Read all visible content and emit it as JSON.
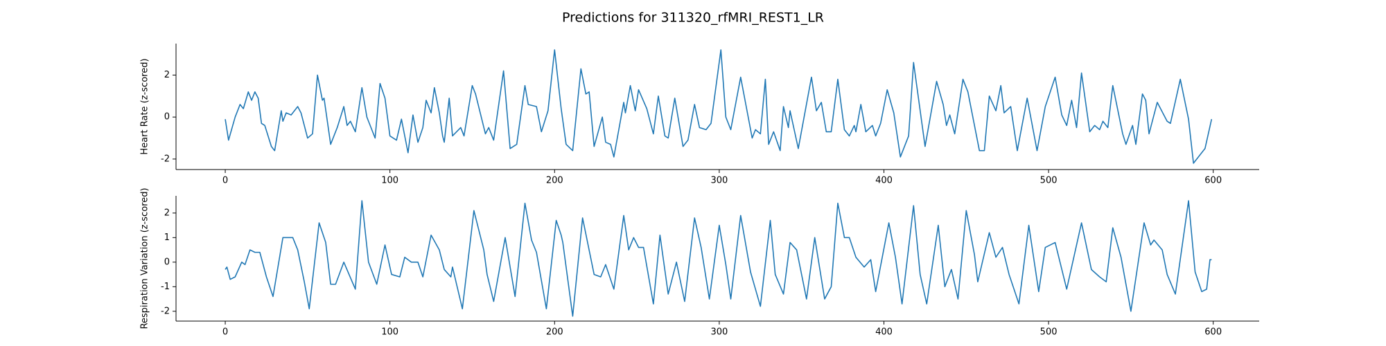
{
  "title": "Predictions for 311320_rfMRI_REST1_LR",
  "chart_data": [
    {
      "type": "line",
      "ylabel": "Heart Rate (z-scored)",
      "xlim": [
        -29.9,
        627.9
      ],
      "xticks": [
        0,
        100,
        200,
        300,
        400,
        500,
        600
      ],
      "ylim": [
        -2.5,
        3.5
      ],
      "yticks": [
        -2,
        0,
        2
      ],
      "x": [
        0,
        2,
        6,
        9,
        11,
        14,
        16,
        18,
        20,
        22,
        24,
        28,
        30,
        34,
        35,
        37,
        40,
        44,
        46,
        50,
        53,
        56,
        59,
        60,
        64,
        68,
        72,
        74,
        76,
        79,
        83,
        86,
        87,
        91,
        94,
        97,
        100,
        104,
        107,
        111,
        114,
        117,
        120,
        122,
        125,
        127,
        130,
        132,
        133,
        136,
        138,
        143,
        145,
        150,
        152,
        158,
        160,
        163,
        169,
        173,
        177,
        182,
        184,
        189,
        192,
        196,
        200,
        204,
        207,
        211,
        216,
        219,
        221,
        224,
        229,
        231,
        234,
        236,
        242,
        243,
        246,
        249,
        251,
        256,
        260,
        263,
        267,
        269,
        273,
        278,
        281,
        285,
        288,
        292,
        295,
        301,
        304,
        307,
        313,
        320,
        322,
        325,
        328,
        330,
        333,
        337,
        339,
        342,
        343,
        348,
        356,
        359,
        362,
        365,
        368,
        372,
        376,
        379,
        382,
        383,
        386,
        389,
        393,
        395,
        398,
        402,
        406,
        410,
        415,
        418,
        425,
        432,
        436,
        438,
        440,
        443,
        448,
        451,
        458,
        461,
        464,
        468,
        471,
        473,
        477,
        481,
        487,
        493,
        498,
        504,
        508,
        511,
        514,
        517,
        520,
        525,
        528,
        531,
        533,
        536,
        539,
        545,
        547,
        551,
        553,
        557,
        559,
        561,
        566,
        572,
        574,
        580,
        585,
        588,
        591,
        595,
        599
      ],
      "series": [
        {
          "color": "#1f77b4",
          "values": [
            -0.1,
            -1.1,
            0,
            0.6,
            0.4,
            1.2,
            0.8,
            1.2,
            0.9,
            -0.3,
            -0.4,
            -1.4,
            -1.6,
            0.3,
            -0.2,
            0.2,
            0.1,
            0.5,
            0.2,
            -1.0,
            -0.8,
            2.0,
            0.8,
            0.9,
            -1.3,
            -0.5,
            0.5,
            -0.4,
            -0.2,
            -0.7,
            1.4,
            0,
            -0.2,
            -1.0,
            1.6,
            0.9,
            -0.9,
            -1.1,
            -0.1,
            -1.7,
            0.1,
            -1.2,
            -0.5,
            0.8,
            0.2,
            1.4,
            0.2,
            -0.9,
            -1.2,
            0.9,
            -0.9,
            -0.5,
            -0.9,
            1.5,
            1.1,
            -0.8,
            -0.5,
            -1.1,
            2.2,
            -1.5,
            -1.3,
            1.5,
            0.6,
            0.5,
            -0.7,
            0.3,
            3.2,
            0.4,
            -1.3,
            -1.6,
            2.3,
            1.1,
            1.2,
            -1.4,
            0,
            -1.2,
            -1.3,
            -1.9,
            0.7,
            0.2,
            1.5,
            0.3,
            1.3,
            0.4,
            -0.8,
            1.0,
            -0.9,
            -1.0,
            0.9,
            -1.4,
            -1.1,
            0.6,
            -0.5,
            -0.6,
            -0.3,
            3.2,
            0,
            -0.6,
            1.9,
            -1.0,
            -0.6,
            -0.8,
            1.8,
            -1.3,
            -0.7,
            -1.6,
            0.5,
            -0.5,
            0.3,
            -1.5,
            1.9,
            0.3,
            0.7,
            -0.7,
            -0.7,
            1.8,
            -0.6,
            -0.9,
            -0.4,
            -0.7,
            0.6,
            -0.7,
            -0.4,
            -0.9,
            -0.3,
            1.3,
            0.2,
            -1.9,
            -0.9,
            2.6,
            -1.4,
            1.7,
            0.6,
            -0.4,
            0.1,
            -0.8,
            1.8,
            1.2,
            -1.6,
            -1.6,
            1.0,
            0.3,
            1.5,
            0.2,
            0.5,
            -1.6,
            0.9,
            -1.6,
            0.5,
            1.9,
            0.1,
            -0.4,
            0.8,
            -0.5,
            2.1,
            -0.7,
            -0.4,
            -0.6,
            -0.2,
            -0.5,
            1.5,
            -0.8,
            -1.3,
            -0.4,
            -1.3,
            1.1,
            0.8,
            -0.8,
            0.7,
            -0.2,
            -0.3,
            1.8,
            -0.1,
            -2.2,
            -1.9,
            -1.5,
            -0.1
          ]
        }
      ]
    },
    {
      "type": "line",
      "ylabel": "Respiration Variation (z-scored)",
      "xlim": [
        -29.9,
        627.9
      ],
      "xticks": [
        0,
        100,
        200,
        300,
        400,
        500,
        600
      ],
      "ylim": [
        -2.4,
        2.7
      ],
      "yticks": [
        -2,
        -1,
        0,
        1,
        2
      ],
      "x": [
        0,
        1,
        3,
        6,
        10,
        12,
        15,
        18,
        21,
        25,
        29,
        35,
        41,
        44,
        48,
        51,
        57,
        61,
        64,
        67,
        72,
        79,
        83,
        87,
        92,
        97,
        101,
        106,
        109,
        113,
        117,
        120,
        125,
        130,
        133,
        137,
        138,
        144,
        151,
        157,
        159,
        163,
        170,
        176,
        182,
        186,
        189,
        195,
        201,
        204,
        205,
        211,
        217,
        224,
        228,
        231,
        236,
        242,
        245,
        248,
        251,
        254,
        260,
        264,
        269,
        274,
        279,
        285,
        289,
        294,
        300,
        304,
        307,
        313,
        319,
        325,
        331,
        334,
        339,
        343,
        347,
        353,
        358,
        364,
        368,
        372,
        376,
        379,
        383,
        388,
        392,
        395,
        403,
        407,
        411,
        418,
        422,
        426,
        433,
        437,
        441,
        445,
        450,
        455,
        457,
        464,
        468,
        472,
        476,
        482,
        488,
        494,
        498,
        504,
        511,
        520,
        526,
        531,
        535,
        539,
        544,
        550,
        558,
        562,
        564,
        569,
        572,
        577,
        585,
        589,
        593,
        596,
        598,
        599
      ],
      "series": [
        {
          "color": "#1f77b4",
          "values": [
            -0.3,
            -0.2,
            -0.7,
            -0.6,
            0,
            -0.1,
            0.5,
            0.4,
            0.4,
            -0.6,
            -1.4,
            1.0,
            1.0,
            0.5,
            -0.8,
            -1.9,
            1.6,
            0.8,
            -0.9,
            -0.9,
            0,
            -1.1,
            2.5,
            0,
            -0.9,
            0.7,
            -0.5,
            -0.6,
            0.2,
            0,
            0,
            -0.6,
            1.1,
            0.5,
            -0.3,
            -0.6,
            -0.2,
            -1.9,
            2.1,
            0.5,
            -0.5,
            -1.6,
            1.0,
            -1.4,
            2.4,
            0.9,
            0.4,
            -1.9,
            1.7,
            1.1,
            0.8,
            -2.2,
            1.8,
            -0.5,
            -0.6,
            -0.1,
            -1.1,
            1.9,
            0.5,
            1.0,
            0.6,
            0.6,
            -1.7,
            1.1,
            -1.3,
            0,
            -1.6,
            1.8,
            0.6,
            -1.5,
            1.5,
            -0.1,
            -1.5,
            1.9,
            -0.4,
            -1.8,
            1.7,
            -0.5,
            -1.3,
            0.8,
            0.5,
            -1.5,
            1.0,
            -1.5,
            -1.0,
            2.4,
            1.0,
            1.0,
            0.2,
            -0.2,
            0.1,
            -1.2,
            1.6,
            0.2,
            -1.7,
            2.3,
            -0.5,
            -1.7,
            1.5,
            -1.0,
            -0.3,
            -1.5,
            2.1,
            0.3,
            -0.8,
            1.2,
            0.2,
            0.6,
            -0.5,
            -1.7,
            1.5,
            -1.2,
            0.6,
            0.8,
            -1.1,
            1.6,
            -0.3,
            -0.6,
            -0.8,
            1.4,
            0.2,
            -2.0,
            1.6,
            0.7,
            0.9,
            0.5,
            -0.5,
            -1.3,
            2.5,
            -0.4,
            -1.2,
            -1.1,
            0.1,
            0.1
          ]
        }
      ]
    }
  ]
}
